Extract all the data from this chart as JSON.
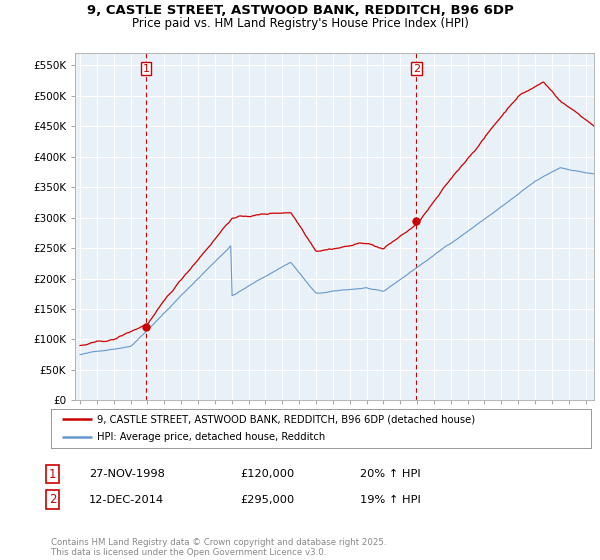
{
  "title_line1": "9, CASTLE STREET, ASTWOOD BANK, REDDITCH, B96 6DP",
  "title_line2": "Price paid vs. HM Land Registry's House Price Index (HPI)",
  "background_color": "#ffffff",
  "plot_bg_color": "#e8f0f8",
  "grid_color": "#ffffff",
  "hpi_color": "#6699cc",
  "price_color": "#cc0000",
  "sale1_date": "27-NOV-1998",
  "sale1_price": 120000,
  "sale1_hpi": "20% ↑ HPI",
  "sale2_date": "12-DEC-2014",
  "sale2_price": 295000,
  "sale2_hpi": "19% ↑ HPI",
  "legend_label1": "9, CASTLE STREET, ASTWOOD BANK, REDDITCH, B96 6DP (detached house)",
  "legend_label2": "HPI: Average price, detached house, Redditch",
  "footer": "Contains HM Land Registry data © Crown copyright and database right 2025.\nThis data is licensed under the Open Government Licence v3.0.",
  "yticks": [
    0,
    50000,
    100000,
    150000,
    200000,
    250000,
    300000,
    350000,
    400000,
    450000,
    500000,
    550000
  ],
  "ytick_labels": [
    "£0",
    "£50K",
    "£100K",
    "£150K",
    "£200K",
    "£250K",
    "£300K",
    "£350K",
    "£400K",
    "£450K",
    "£500K",
    "£550K"
  ],
  "marker1_x": 1998.92,
  "marker1_y": 120000,
  "marker2_x": 2014.96,
  "marker2_y": 295000,
  "vline1_x": 1998.92,
  "vline2_x": 2014.96,
  "xlim_left": 1994.7,
  "xlim_right": 2025.5,
  "ylim_top": 570000,
  "seed": 42
}
